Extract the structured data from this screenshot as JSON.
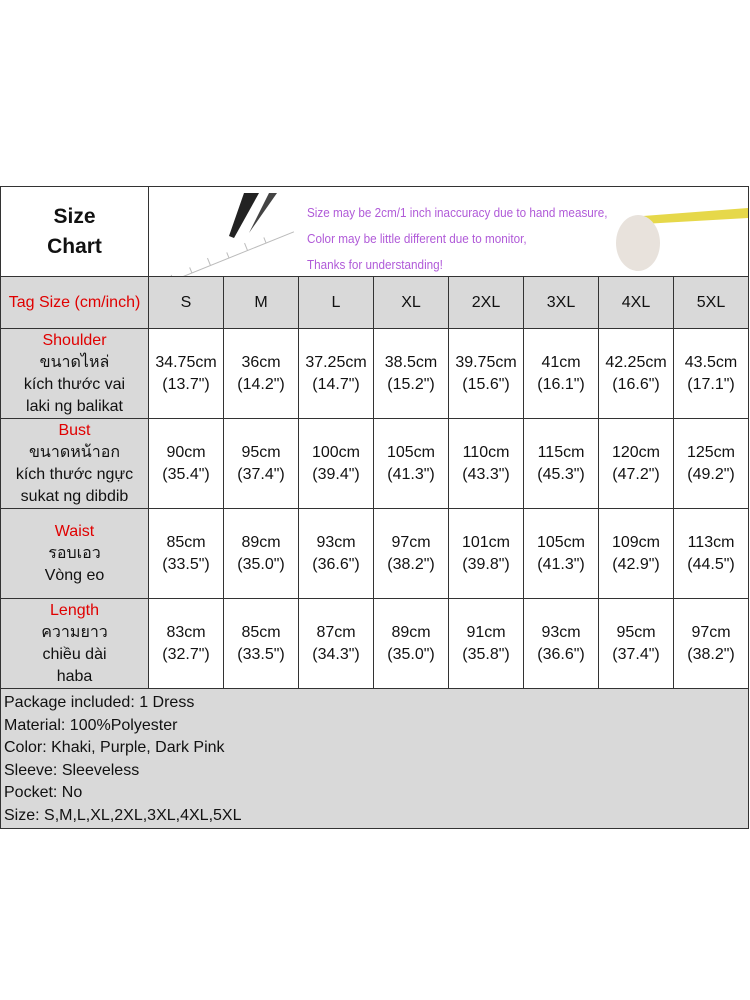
{
  "title": [
    "Size",
    "Chart"
  ],
  "notes": [
    "Size may be 2cm/1 inch inaccuracy due to hand measure,",
    "Color may be little different due to monitor,",
    "Thanks for understanding!"
  ],
  "tag_label": "Tag Size (cm/inch)",
  "sizes": [
    "S",
    "M",
    "L",
    "XL",
    "2XL",
    "3XL",
    "4XL",
    "5XL"
  ],
  "rows": [
    {
      "name": "Shoulder",
      "translations": [
        "ขนาดไหล่",
        "kích thước vai",
        "laki ng balikat"
      ],
      "cm": [
        "34.75cm",
        "36cm",
        "37.25cm",
        "38.5cm",
        "39.75cm",
        "41cm",
        "42.25cm",
        "43.5cm"
      ],
      "inch": [
        "(13.7\")",
        "(14.2\")",
        "(14.7\")",
        "(15.2\")",
        "(15.6\")",
        "(16.1\")",
        "(16.6\")",
        "(17.1\")"
      ]
    },
    {
      "name": "Bust",
      "translations": [
        "ขนาดหน้าอก",
        "kích thước ngực",
        "sukat ng dibdib"
      ],
      "cm": [
        "90cm",
        "95cm",
        "100cm",
        "105cm",
        "110cm",
        "115cm",
        "120cm",
        "125cm"
      ],
      "inch": [
        "(35.4\")",
        "(37.4\")",
        "(39.4\")",
        "(41.3\")",
        "(43.3\")",
        "(45.3\")",
        "(47.2\")",
        "(49.2\")"
      ]
    },
    {
      "name": "Waist",
      "translations": [
        "รอบเอว",
        "Vòng eo"
      ],
      "cm": [
        "85cm",
        "89cm",
        "93cm",
        "97cm",
        "101cm",
        "105cm",
        "109cm",
        "113cm"
      ],
      "inch": [
        "(33.5\")",
        "(35.0\")",
        "(36.6\")",
        "(38.2\")",
        "(39.8\")",
        "(41.3\")",
        "(42.9\")",
        "(44.5\")"
      ]
    },
    {
      "name": "Length",
      "translations": [
        "ความยาว",
        "chiều dài",
        "haba"
      ],
      "cm": [
        "83cm",
        "85cm",
        "87cm",
        "89cm",
        "91cm",
        "93cm",
        "95cm",
        "97cm"
      ],
      "inch": [
        "(32.7\")",
        "(33.5\")",
        "(34.3\")",
        "(35.0\")",
        "(35.8\")",
        "(36.6\")",
        "(37.4\")",
        "(38.2\")"
      ]
    }
  ],
  "details": [
    "Package included: 1 Dress",
    "Material: 100%Polyester",
    "Color: Khaki, Purple, Dark Pink",
    "Sleeve: Sleeveless",
    "Pocket: No",
    "Size: S,M,L,XL,2XL,3XL,4XL,5XL"
  ],
  "colors": {
    "label_red": "#e00000",
    "notes_purple": "#b05ad8",
    "cell_gray": "#d9d9d9"
  }
}
